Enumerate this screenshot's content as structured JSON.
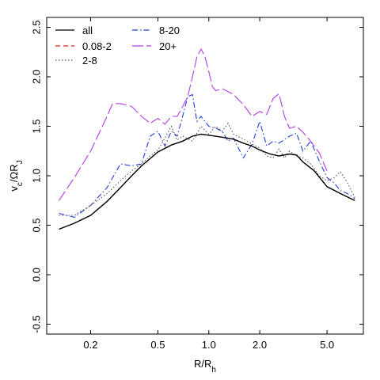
{
  "chart_data": {
    "type": "line",
    "xlabel_main": "R/R",
    "xlabel_sub": "h",
    "ylabel_main": "v",
    "ylabel_sub1": "c",
    "ylabel_mid": "/ΩR",
    "ylabel_sub2": "J",
    "x_scale": "log",
    "xlim": [
      0.11,
      8.2
    ],
    "ylim": [
      -0.6,
      2.6
    ],
    "x_ticks": [
      0.2,
      0.5,
      1.0,
      2.0,
      5.0
    ],
    "x_tick_labels": [
      "0.2",
      "0.5",
      "1.0",
      "2.0",
      "5.0"
    ],
    "y_ticks": [
      -0.5,
      0.0,
      0.5,
      1.0,
      1.5,
      2.0,
      2.5
    ],
    "y_tick_labels": [
      "-0.5",
      "0.0",
      "0.5",
      "1.0",
      "1.5",
      "2.0",
      "2.5"
    ],
    "grid": false,
    "legend_position": "top-left",
    "series": [
      {
        "name": "all",
        "color": "#000000",
        "dash": "",
        "x": [
          0.13,
          0.16,
          0.2,
          0.25,
          0.3,
          0.35,
          0.4,
          0.5,
          0.6,
          0.7,
          0.8,
          0.9,
          1.0,
          1.2,
          1.4,
          1.6,
          1.8,
          2.0,
          2.3,
          2.6,
          3.0,
          3.3,
          3.6,
          4.2,
          5.0,
          6.0,
          7.3
        ],
        "y": [
          0.46,
          0.52,
          0.6,
          0.74,
          0.88,
          1.0,
          1.1,
          1.24,
          1.31,
          1.35,
          1.4,
          1.42,
          1.41,
          1.39,
          1.37,
          1.33,
          1.3,
          1.26,
          1.22,
          1.2,
          1.22,
          1.21,
          1.14,
          1.05,
          0.89,
          0.82,
          0.75
        ]
      },
      {
        "name": "0.08-2",
        "color": "#e41a1c",
        "dash": "6,4",
        "x": [
          0.13,
          0.16,
          0.2,
          0.25,
          0.3,
          0.35,
          0.4,
          0.5,
          0.6,
          0.7,
          0.8,
          0.9,
          1.0,
          1.2,
          1.4,
          1.6,
          1.8,
          2.0,
          2.3,
          2.6,
          3.0,
          3.3,
          3.6,
          4.2,
          5.0,
          6.0,
          7.3
        ],
        "y": [
          0.46,
          0.52,
          0.6,
          0.74,
          0.88,
          1.0,
          1.1,
          1.24,
          1.31,
          1.35,
          1.4,
          1.42,
          1.41,
          1.39,
          1.37,
          1.33,
          1.3,
          1.26,
          1.22,
          1.2,
          1.22,
          1.21,
          1.14,
          1.05,
          0.89,
          0.82,
          0.75
        ]
      },
      {
        "name": "2-8",
        "color": "#555555",
        "dash": "1.5,2.5",
        "x": [
          0.13,
          0.16,
          0.2,
          0.25,
          0.3,
          0.35,
          0.4,
          0.45,
          0.5,
          0.55,
          0.6,
          0.65,
          0.7,
          0.8,
          0.9,
          1.0,
          1.1,
          1.2,
          1.3,
          1.4,
          1.6,
          1.8,
          2.0,
          2.2,
          2.4,
          2.6,
          2.8,
          3.0,
          3.3,
          3.6,
          4.0,
          4.5,
          5.0,
          5.5,
          6.0,
          6.6,
          7.3
        ],
        "y": [
          0.6,
          0.6,
          0.7,
          0.82,
          0.95,
          1.05,
          1.12,
          1.2,
          1.26,
          1.38,
          1.5,
          1.36,
          1.4,
          1.35,
          1.5,
          1.42,
          1.5,
          1.45,
          1.53,
          1.42,
          1.37,
          1.32,
          1.28,
          1.2,
          1.18,
          1.27,
          1.18,
          1.25,
          1.2,
          1.18,
          1.12,
          1.0,
          0.95,
          0.98,
          1.04,
          0.93,
          0.78
        ]
      },
      {
        "name": "8-20",
        "color": "#1f3fd6",
        "dash": "7,3,1.5,3",
        "x": [
          0.13,
          0.16,
          0.2,
          0.25,
          0.3,
          0.35,
          0.4,
          0.45,
          0.5,
          0.55,
          0.6,
          0.65,
          0.7,
          0.75,
          0.8,
          0.85,
          0.9,
          1.0,
          1.1,
          1.2,
          1.3,
          1.4,
          1.6,
          1.8,
          2.0,
          2.2,
          2.4,
          2.6,
          3.0,
          3.3,
          3.6,
          4.0,
          4.5,
          5.0,
          5.5,
          6.0,
          6.6,
          7.3
        ],
        "y": [
          0.62,
          0.58,
          0.7,
          0.88,
          1.12,
          1.1,
          1.12,
          1.4,
          1.45,
          1.3,
          1.45,
          1.4,
          1.6,
          1.8,
          1.82,
          1.55,
          1.6,
          1.5,
          1.48,
          1.45,
          1.35,
          1.38,
          1.18,
          1.32,
          1.55,
          1.3,
          1.35,
          1.33,
          1.4,
          1.43,
          1.25,
          1.35,
          1.15,
          0.98,
          0.93,
          0.85,
          0.82,
          0.77
        ]
      },
      {
        "name": "20+",
        "color": "#b03de6",
        "dash": "14,4",
        "x": [
          0.13,
          0.16,
          0.2,
          0.25,
          0.27,
          0.3,
          0.35,
          0.4,
          0.45,
          0.5,
          0.55,
          0.6,
          0.65,
          0.7,
          0.75,
          0.8,
          0.85,
          0.9,
          0.95,
          1.0,
          1.05,
          1.1,
          1.2,
          1.3,
          1.4,
          1.6,
          1.8,
          2.0,
          2.2,
          2.4,
          2.6,
          2.8,
          3.0,
          3.3,
          3.6,
          4.0,
          4.5,
          5.0
        ],
        "y": [
          0.75,
          0.98,
          1.25,
          1.6,
          1.73,
          1.73,
          1.7,
          1.6,
          1.53,
          1.58,
          1.52,
          1.6,
          1.6,
          1.7,
          1.8,
          2.0,
          2.2,
          2.28,
          2.2,
          2.05,
          1.9,
          1.86,
          1.88,
          1.85,
          1.82,
          1.72,
          1.6,
          1.65,
          1.62,
          1.78,
          1.83,
          1.6,
          1.48,
          1.5,
          1.44,
          1.35,
          1.23,
          1.05
        ]
      }
    ]
  }
}
